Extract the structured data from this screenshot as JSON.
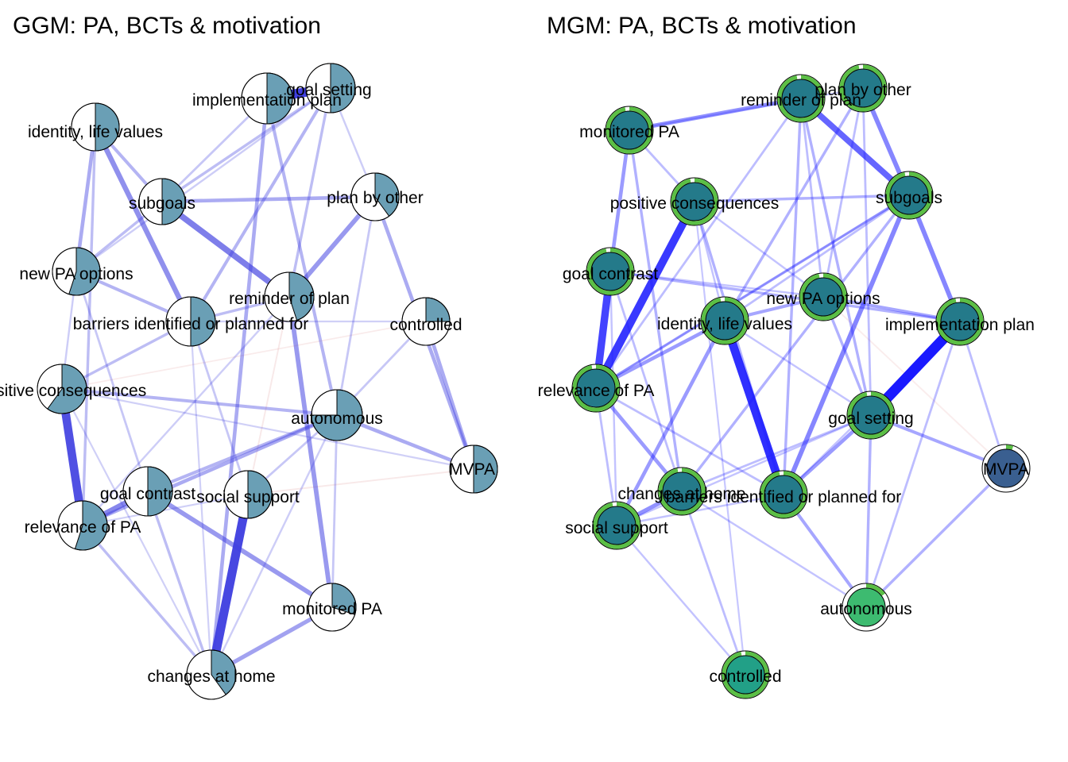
{
  "panels": [
    {
      "id": "ggm",
      "title": "GGM: PA, BCTs & motivation",
      "style": "pie",
      "colors": {
        "pie_fill": "#6a9fb5",
        "pie_bg": "#ffffff",
        "edge_pos": "#3f3fe0",
        "edge_neg": "#e0a0a0"
      },
      "nodes": [
        {
          "id": "implementation",
          "label": "implementation plan",
          "pie": 0.5
        },
        {
          "id": "goalsetting",
          "label": "goal setting",
          "pie": 0.5
        },
        {
          "id": "identity",
          "label": "identity, life values",
          "pie": 0.5
        },
        {
          "id": "subgoals",
          "label": "subgoals",
          "pie": 0.5
        },
        {
          "id": "planbyother",
          "label": "plan by other",
          "pie": 0.4
        },
        {
          "id": "newpa",
          "label": "new PA options",
          "pie": 0.55
        },
        {
          "id": "reminder",
          "label": "reminder of plan",
          "pie": 0.45
        },
        {
          "id": "barriers",
          "label": "barriers identified or planned for",
          "pie": 0.5
        },
        {
          "id": "controlled",
          "label": "controlled",
          "pie": 0.25
        },
        {
          "id": "posconseq",
          "label": "positive consequences",
          "pie": 0.6
        },
        {
          "id": "autonomous",
          "label": "autonomous",
          "pie": 0.75
        },
        {
          "id": "mvpa",
          "label": "MVPA",
          "pie": 0.5
        },
        {
          "id": "goalcontrast",
          "label": "goal contrast",
          "pie": 0.5
        },
        {
          "id": "socialsupport",
          "label": "social support",
          "pie": 0.5
        },
        {
          "id": "relevance",
          "label": "relevance of PA",
          "pie": 0.55
        },
        {
          "id": "monitored",
          "label": "monitored PA",
          "pie": 0.3
        },
        {
          "id": "changes",
          "label": "changes at home",
          "pie": 0.4
        }
      ],
      "edges": [
        {
          "from": "posconseq",
          "to": "relevance",
          "weight": 0.8
        },
        {
          "from": "socialsupport",
          "to": "changes",
          "weight": 0.85
        },
        {
          "from": "subgoals",
          "to": "reminder",
          "weight": 0.55
        },
        {
          "from": "identity",
          "to": "barriers",
          "weight": 0.45
        },
        {
          "from": "goalcontrast",
          "to": "relevance",
          "weight": 0.5
        },
        {
          "from": "reminder",
          "to": "monitored",
          "weight": 0.4
        },
        {
          "from": "changes",
          "to": "monitored",
          "weight": 0.35
        },
        {
          "from": "goalcontrast",
          "to": "monitored",
          "weight": 0.4
        },
        {
          "from": "planbyother",
          "to": "reminder",
          "weight": 0.4
        },
        {
          "from": "autonomous",
          "to": "mvpa",
          "weight": 0.3
        },
        {
          "from": "controlled",
          "to": "mvpa",
          "weight": 0.3
        },
        {
          "from": "planbyother",
          "to": "mvpa",
          "weight": 0.3
        },
        {
          "from": "implementation",
          "to": "goalsetting",
          "weight": 0.9
        },
        {
          "from": "subgoals",
          "to": "planbyother",
          "weight": 0.3
        },
        {
          "from": "identity",
          "to": "newpa",
          "weight": 0.3
        },
        {
          "from": "implementation",
          "to": "changes",
          "weight": 0.3
        },
        {
          "from": "newpa",
          "to": "barriers",
          "weight": 0.25
        },
        {
          "from": "posconseq",
          "to": "autonomous",
          "weight": 0.25
        },
        {
          "from": "goalsetting",
          "to": "barriers",
          "weight": 0.25
        },
        {
          "from": "implementation",
          "to": "autonomous",
          "weight": 0.25
        },
        {
          "from": "relevance",
          "to": "autonomous",
          "weight": 0.3
        },
        {
          "from": "goalcontrast",
          "to": "autonomous",
          "weight": 0.25
        },
        {
          "from": "identity",
          "to": "subgoals",
          "weight": 0.25
        },
        {
          "from": "newpa",
          "to": "subgoals",
          "weight": 0.2
        },
        {
          "from": "relevance",
          "to": "changes",
          "weight": 0.2
        },
        {
          "from": "goalcontrast",
          "to": "changes",
          "weight": 0.2
        },
        {
          "from": "identity",
          "to": "relevance",
          "weight": 0.2
        },
        {
          "from": "barriers",
          "to": "reminder",
          "weight": 0.2
        },
        {
          "from": "goalsetting",
          "to": "reminder",
          "weight": 0.2
        },
        {
          "from": "subgoals",
          "to": "goalsetting",
          "weight": 0.2
        },
        {
          "from": "posconseq",
          "to": "barriers",
          "weight": 0.2
        },
        {
          "from": "barriers",
          "to": "socialsupport",
          "weight": 0.15
        },
        {
          "from": "monitored",
          "to": "autonomous",
          "weight": 0.15
        },
        {
          "from": "planbyother",
          "to": "autonomous",
          "weight": 0.15
        },
        {
          "from": "newpa",
          "to": "goalcontrast",
          "weight": 0.15
        },
        {
          "from": "socialsupport",
          "to": "autonomous",
          "weight": 0.15
        },
        {
          "from": "controlled",
          "to": "autonomous",
          "weight": 0.15
        },
        {
          "from": "posconseq",
          "to": "mvpa",
          "weight": 0.1
        },
        {
          "from": "relevance",
          "to": "socialsupport",
          "weight": 0.1
        },
        {
          "from": "goalsetting",
          "to": "planbyother",
          "weight": 0.12
        },
        {
          "from": "implementation",
          "to": "subgoals",
          "weight": 0.15
        },
        {
          "from": "changes",
          "to": "autonomous",
          "weight": 0.12
        },
        {
          "from": "newpa",
          "to": "posconseq",
          "weight": 0.12
        },
        {
          "from": "barriers",
          "to": "controlled",
          "weight": 0.1
        },
        {
          "from": "reminder",
          "to": "relevance",
          "weight": 0.12
        },
        {
          "from": "goalsetting",
          "to": "newpa",
          "weight": 0.12
        },
        {
          "from": "barriers",
          "to": "changes",
          "weight": 0.1
        },
        {
          "from": "posconseq",
          "to": "changes",
          "weight": 0.1
        },
        {
          "from": "socialsupport",
          "to": "mvpa",
          "weight": -0.08
        },
        {
          "from": "reminder",
          "to": "socialsupport",
          "weight": -0.08
        },
        {
          "from": "posconseq",
          "to": "controlled",
          "weight": -0.06
        }
      ]
    },
    {
      "id": "mgm",
      "title": "MGM: PA, BCTs & motivation",
      "style": "ring",
      "colors": {
        "ring": "#5bbf45",
        "edge_pos": "#1a1aff",
        "edge_neg": "#e8b0b0"
      },
      "nodes": [
        {
          "id": "reminder",
          "label": "reminder of plan",
          "fill": "#247a8a",
          "ring": 0.97
        },
        {
          "id": "planbyother",
          "label": "plan by other",
          "fill": "#247a8a",
          "ring": 0.97
        },
        {
          "id": "monitored",
          "label": "monitored PA",
          "fill": "#247a8a",
          "ring": 0.97
        },
        {
          "id": "posconseq",
          "label": "positive consequences",
          "fill": "#247a8a",
          "ring": 0.97
        },
        {
          "id": "subgoals",
          "label": "subgoals",
          "fill": "#247a8a",
          "ring": 0.97
        },
        {
          "id": "goalcontrast",
          "label": "goal contrast",
          "fill": "#247a8a",
          "ring": 0.97
        },
        {
          "id": "newpa",
          "label": "new PA options",
          "fill": "#247a8a",
          "ring": 0.97
        },
        {
          "id": "identity",
          "label": "identity, life values",
          "fill": "#247a8a",
          "ring": 0.97
        },
        {
          "id": "implementation",
          "label": "implementation plan",
          "fill": "#247a8a",
          "ring": 0.97
        },
        {
          "id": "relevance",
          "label": "relevance of PA",
          "fill": "#247a8a",
          "ring": 0.97
        },
        {
          "id": "goalsetting",
          "label": "goal setting",
          "fill": "#247a8a",
          "ring": 0.97
        },
        {
          "id": "mvpa",
          "label": "MVPA",
          "fill": "#3a5f90",
          "ring": 0.05
        },
        {
          "id": "changes",
          "label": "changes at home",
          "fill": "#247a8a",
          "ring": 0.97
        },
        {
          "id": "barriers",
          "label": "barriers identified or planned for",
          "fill": "#247a8a",
          "ring": 0.97
        },
        {
          "id": "socialsupport",
          "label": "social support",
          "fill": "#247a8a",
          "ring": 0.97
        },
        {
          "id": "autonomous",
          "label": "autonomous",
          "fill": "#3dbb70",
          "ring": 0.15
        },
        {
          "id": "controlled",
          "label": "controlled",
          "fill": "#22a087",
          "ring": 0.97
        }
      ],
      "edges": [
        {
          "from": "implementation",
          "to": "goalsetting",
          "weight": 1.0
        },
        {
          "from": "identity",
          "to": "barriers",
          "weight": 0.8
        },
        {
          "from": "posconseq",
          "to": "relevance",
          "weight": 0.75
        },
        {
          "from": "goalcontrast",
          "to": "relevance",
          "weight": 0.7
        },
        {
          "from": "reminder",
          "to": "subgoals",
          "weight": 0.55
        },
        {
          "from": "planbyother",
          "to": "subgoals",
          "weight": 0.4
        },
        {
          "from": "subgoals",
          "to": "implementation",
          "weight": 0.4
        },
        {
          "from": "subgoals",
          "to": "barriers",
          "weight": 0.4
        },
        {
          "from": "monitored",
          "to": "reminder",
          "weight": 0.35
        },
        {
          "from": "monitored",
          "to": "goalcontrast",
          "weight": 0.3
        },
        {
          "from": "relevance",
          "to": "changes",
          "weight": 0.3
        },
        {
          "from": "relevance",
          "to": "identity",
          "weight": 0.3
        },
        {
          "from": "socialsupport",
          "to": "changes",
          "weight": 0.35
        },
        {
          "from": "socialsupport",
          "to": "identity",
          "weight": 0.3
        },
        {
          "from": "goalsetting",
          "to": "barriers",
          "weight": 0.3
        },
        {
          "from": "goalsetting",
          "to": "mvpa",
          "weight": 0.25
        },
        {
          "from": "barriers",
          "to": "autonomous",
          "weight": 0.25
        },
        {
          "from": "goalsetting",
          "to": "autonomous",
          "weight": 0.2
        },
        {
          "from": "mvpa",
          "to": "autonomous",
          "weight": 0.2
        },
        {
          "from": "newpa",
          "to": "implementation",
          "weight": 0.25
        },
        {
          "from": "identity",
          "to": "newpa",
          "weight": 0.25
        },
        {
          "from": "changes",
          "to": "controlled",
          "weight": 0.15
        },
        {
          "from": "socialsupport",
          "to": "controlled",
          "weight": 0.12
        },
        {
          "from": "goalcontrast",
          "to": "implementation",
          "weight": 0.2
        },
        {
          "from": "posconseq",
          "to": "barriers",
          "weight": 0.2
        },
        {
          "from": "posconseq",
          "to": "subgoals",
          "weight": 0.2
        },
        {
          "from": "monitored",
          "to": "changes",
          "weight": 0.2
        },
        {
          "from": "newpa",
          "to": "goalsetting",
          "weight": 0.2
        },
        {
          "from": "reminder",
          "to": "goalsetting",
          "weight": 0.2
        },
        {
          "from": "reminder",
          "to": "barriers",
          "weight": 0.2
        },
        {
          "from": "planbyother",
          "to": "identity",
          "weight": 0.2
        },
        {
          "from": "reminder",
          "to": "relevance",
          "weight": 0.15
        },
        {
          "from": "subgoals",
          "to": "relevance",
          "weight": 0.2
        },
        {
          "from": "subgoals",
          "to": "changes",
          "weight": 0.2
        },
        {
          "from": "changes",
          "to": "goalsetting",
          "weight": 0.15
        },
        {
          "from": "implementation",
          "to": "autonomous",
          "weight": 0.15
        },
        {
          "from": "implementation",
          "to": "mvpa",
          "weight": 0.15
        },
        {
          "from": "goalcontrast",
          "to": "changes",
          "weight": 0.15
        },
        {
          "from": "monitored",
          "to": "posconseq",
          "weight": 0.15
        },
        {
          "from": "planbyother",
          "to": "newpa",
          "weight": 0.15
        },
        {
          "from": "planbyother",
          "to": "goalsetting",
          "weight": 0.15
        },
        {
          "from": "reminder",
          "to": "newpa",
          "weight": 0.15
        },
        {
          "from": "subgoals",
          "to": "identity",
          "weight": 0.15
        },
        {
          "from": "posconseq",
          "to": "newpa",
          "weight": 0.12
        },
        {
          "from": "posconseq",
          "to": "identity",
          "weight": 0.12
        },
        {
          "from": "relevance",
          "to": "barriers",
          "weight": 0.15
        },
        {
          "from": "socialsupport",
          "to": "barriers",
          "weight": 0.12
        },
        {
          "from": "identity",
          "to": "goalsetting",
          "weight": 0.12
        },
        {
          "from": "changes",
          "to": "autonomous",
          "weight": 0.12
        },
        {
          "from": "goalcontrast",
          "to": "newpa",
          "weight": 0.12
        },
        {
          "from": "monitored",
          "to": "planbyother",
          "weight": 0.1
        },
        {
          "from": "relevance",
          "to": "subgoals",
          "weight": 0.12
        },
        {
          "from": "goalcontrast",
          "to": "socialsupport",
          "weight": 0.12
        },
        {
          "from": "relevance",
          "to": "socialsupport",
          "weight": 0.15
        },
        {
          "from": "implementation",
          "to": "barriers",
          "weight": 0.12
        },
        {
          "from": "goalsetting",
          "to": "socialsupport",
          "weight": 0.12
        },
        {
          "from": "newpa",
          "to": "mvpa",
          "weight": -0.08
        },
        {
          "from": "posconseq",
          "to": "controlled",
          "weight": 0.1
        }
      ]
    }
  ]
}
